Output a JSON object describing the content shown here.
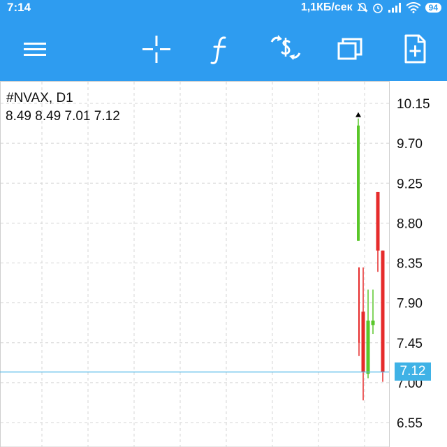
{
  "status_bar": {
    "time": "7:14",
    "network_speed": "1,1КБ/сек",
    "battery": "94",
    "icons": [
      "mute-icon",
      "alarm-icon",
      "signal-icon",
      "wifi-icon",
      "battery-icon"
    ]
  },
  "toolbar": {
    "buttons": [
      "menu-icon",
      "crosshair-icon",
      "indicators-icon",
      "trade-icon",
      "windows-icon",
      "new-order-icon"
    ],
    "accent": "#2e9cf0"
  },
  "chart_header": {
    "symbol_timeframe": "#NVAX, D1",
    "ohlc": "8.49 8.49 7.01 7.12"
  },
  "current_price": "7.12",
  "chart_data": {
    "type": "candlestick",
    "y_ticks": [
      "10.15",
      "9.70",
      "9.25",
      "8.80",
      "8.35",
      "7.90",
      "7.45",
      "7.00",
      "6.55"
    ],
    "ylim": [
      6.4,
      10.36
    ],
    "grid": true,
    "colors": {
      "up": "#5ac72a",
      "down": "#e62b2b",
      "grid": "#d4d4d4",
      "price_line": "#4fb8e8"
    },
    "candles": [
      {
        "open": 8.6,
        "high": 9.98,
        "low": 8.6,
        "close": 9.9
      },
      {
        "open": 8.3,
        "high": 8.3,
        "low": 7.3,
        "close": 7.45
      },
      {
        "open": 7.8,
        "high": 8.3,
        "low": 6.8,
        "close": 7.12
      },
      {
        "open": 7.1,
        "high": 8.05,
        "low": 7.05,
        "close": 7.7
      },
      {
        "open": 7.65,
        "high": 8.05,
        "low": 7.55,
        "close": 7.7
      },
      {
        "open": 9.15,
        "high": 9.15,
        "low": 8.25,
        "close": 8.49
      },
      {
        "open": 8.49,
        "high": 8.49,
        "low": 7.01,
        "close": 7.12
      }
    ],
    "marker_price": 9.98
  }
}
